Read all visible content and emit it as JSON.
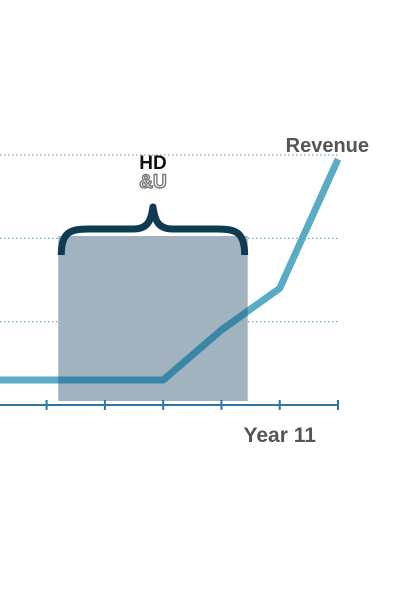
{
  "chart_data": {
    "type": "line",
    "title": "",
    "xlabel": "",
    "ylabel": "",
    "x": [
      7.0,
      8.0,
      9.0,
      10.0,
      11.0,
      12.0
    ],
    "xlim": [
      6.2,
      12.0
    ],
    "ylim": [
      0,
      3
    ],
    "grid": true,
    "series": [
      {
        "name": "Revenue",
        "color": "#5aabc6",
        "x": [
          6.2,
          7.2,
          8.0,
          9.0,
          10.0,
          11.0,
          12.0
        ],
        "values": [
          0.3,
          0.3,
          0.3,
          0.3,
          0.9,
          1.4,
          2.95
        ]
      }
    ],
    "x_tick_labels": [
      {
        "x": 11.0,
        "label": "Year 11"
      }
    ],
    "highlight": {
      "x_range": [
        7.2,
        10.45
      ],
      "fill": "#a2b3c0",
      "brace_color": "#0f3b52",
      "logo": {
        "line1": "HD",
        "line2": "&U"
      }
    },
    "colors": {
      "axis": "#2f76a6",
      "grid": "#4f8fc0",
      "line_inside": "#3a86a6"
    }
  }
}
